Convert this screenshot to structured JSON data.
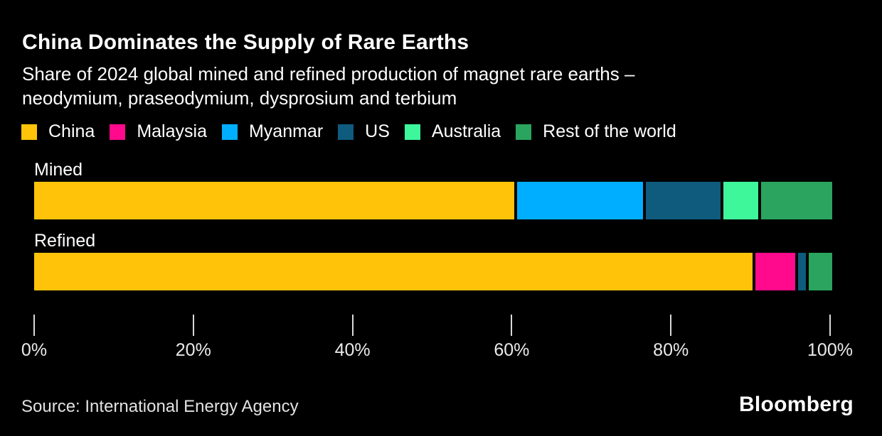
{
  "title": "China Dominates the Supply of Rare Earths",
  "subtitle_lines": [
    "Share of 2024 global mined and refined production of magnet rare earths –",
    "neodymium, praseodymium, dysprosium and terbium"
  ],
  "chart_data": {
    "type": "bar",
    "orientation": "horizontal",
    "stacked": true,
    "unit": "%",
    "categories": [
      "Mined",
      "Refined"
    ],
    "legend": [
      "China",
      "Malaysia",
      "Myanmar",
      "US",
      "Australia",
      "Rest of the world"
    ],
    "colors": {
      "China": "#FFC40A",
      "Malaysia": "#FF0A8C",
      "Myanmar": "#00AEFF",
      "US": "#0F5B7E",
      "Australia": "#3EF79B",
      "Rest of the world": "#2BA45F"
    },
    "bars": [
      {
        "category": "Mined",
        "segments": [
          {
            "name": "China",
            "value": 61
          },
          {
            "name": "Myanmar",
            "value": 16
          },
          {
            "name": "US",
            "value": 9.5
          },
          {
            "name": "Australia",
            "value": 4.5
          },
          {
            "name": "Rest of the world",
            "value": 9
          }
        ]
      },
      {
        "category": "Refined",
        "segments": [
          {
            "name": "China",
            "value": 91
          },
          {
            "name": "Malaysia",
            "value": 5
          },
          {
            "name": "US",
            "value": 1
          },
          {
            "name": "Rest of the world",
            "value": 3
          }
        ]
      }
    ],
    "x_axis": {
      "range": [
        0,
        100
      ],
      "tick_labels": [
        "0%",
        "20%",
        "40%",
        "60%",
        "80%",
        "100%"
      ],
      "grid": false
    },
    "legend_position": "top",
    "background": "#000000"
  },
  "footer": {
    "source": "Source: International Energy Agency",
    "logo": "Bloomberg"
  }
}
